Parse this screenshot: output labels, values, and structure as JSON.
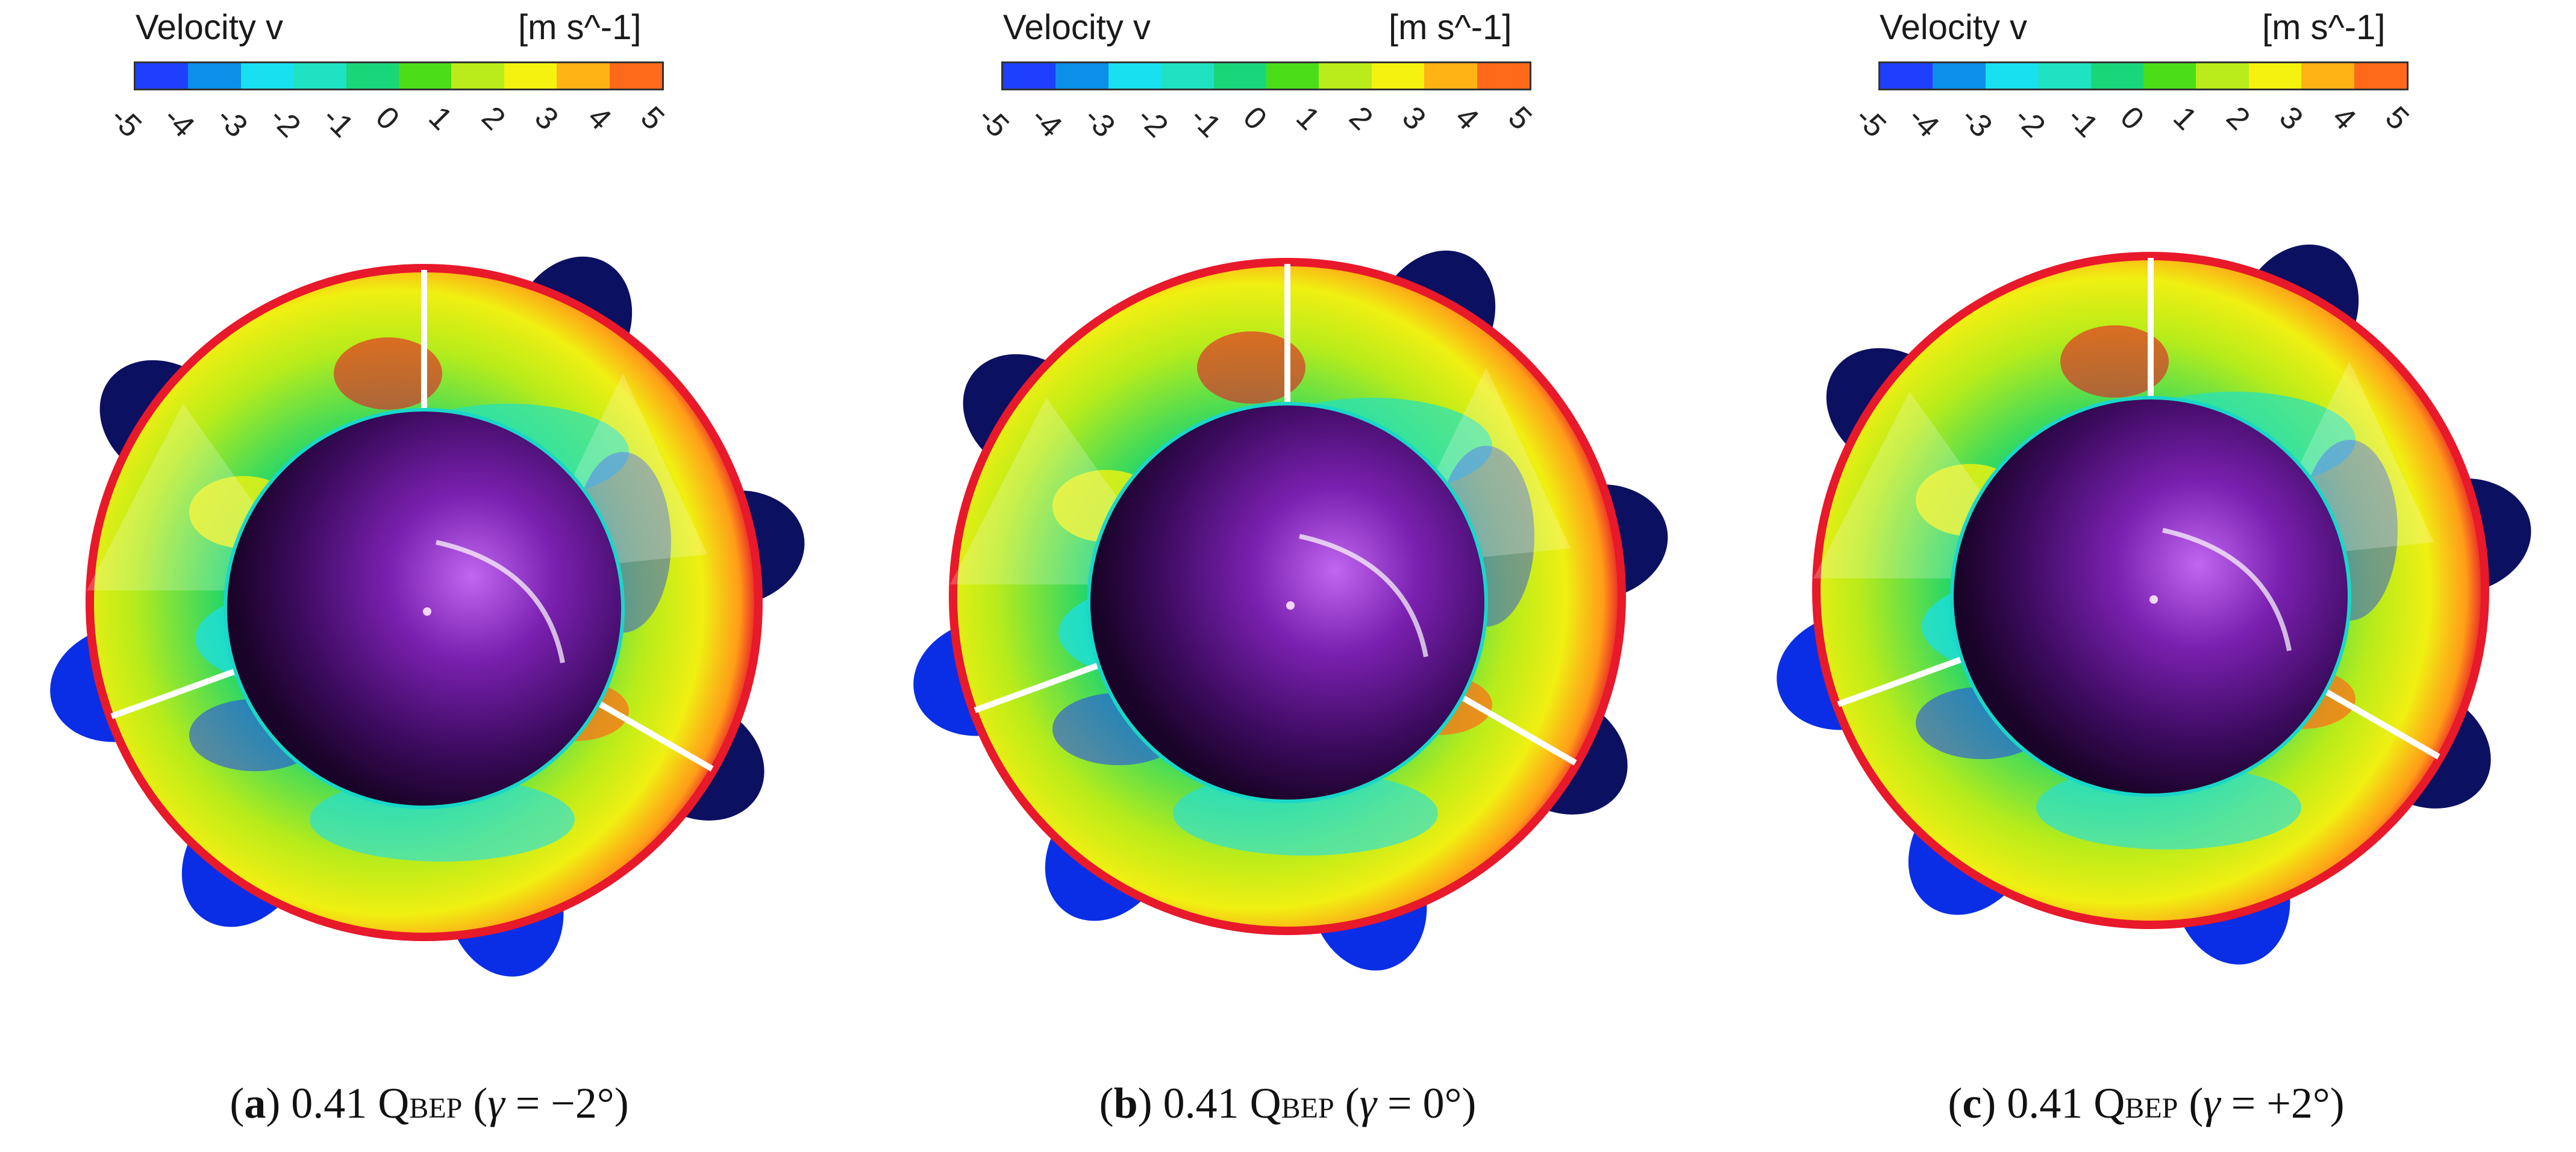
{
  "legend": {
    "title": "Velocity v",
    "units": "[m s^-1]",
    "ticks": [
      "-5",
      "-4",
      "-3",
      "-2",
      "-1",
      "0",
      "1",
      "2",
      "3",
      "4",
      "5"
    ],
    "colors": [
      "#1f3fff",
      "#0b8fe8",
      "#19e0f0",
      "#1fe2c2",
      "#19d67a",
      "#4bdd18",
      "#b9ec1a",
      "#f4f20e",
      "#ffb315",
      "#ff6a1a"
    ]
  },
  "panels": [
    {
      "letter": "a",
      "caption_pre": ") 0.41 Q",
      "caption_sub": "BEP",
      "caption_eq_open": " (",
      "gamma": "γ",
      "caption_eq": " = −2°)"
    },
    {
      "letter": "b",
      "caption_pre": ") 0.41 Q",
      "caption_sub": "BEP",
      "caption_eq_open": " (",
      "gamma": "γ",
      "caption_eq": " = 0°)"
    },
    {
      "letter": "c",
      "caption_pre": ") 0.41 Q",
      "caption_sub": "BEP",
      "caption_eq_open": " (",
      "gamma": "γ",
      "caption_eq": " = +2°)"
    }
  ],
  "caption_open": "(",
  "colors": {
    "hub": "#5a1380",
    "blade_dark": "#0c1060",
    "blade_blue": "#0a2ee6",
    "rim": "#e8192a"
  }
}
